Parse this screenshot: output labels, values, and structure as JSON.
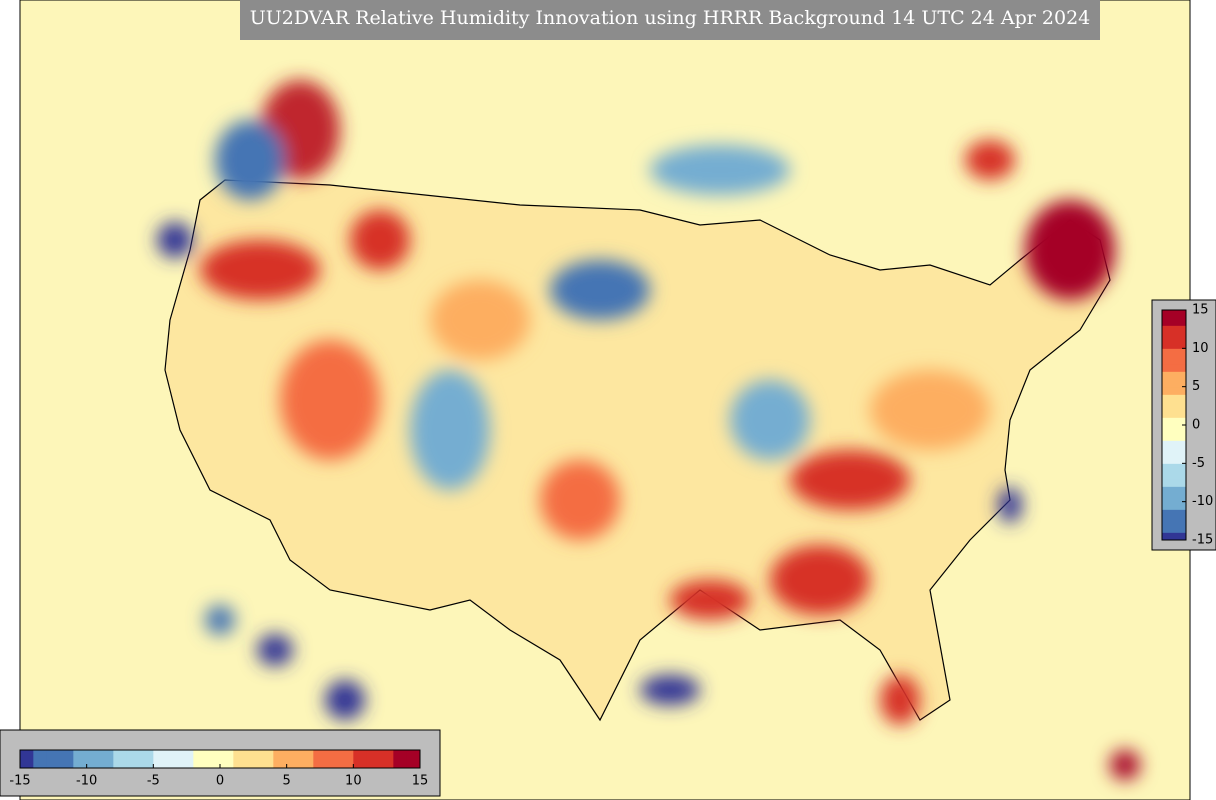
{
  "title": "UU2DVAR Relative Humidity Innovation using HRRR Background 14 UTC 24 Apr 2024",
  "colormap": [
    "#313695",
    "#4575b4",
    "#74add1",
    "#abd9e9",
    "#e0f3f8",
    "#ffffbf",
    "#fee090",
    "#fdae61",
    "#f46d43",
    "#d73027",
    "#a50026"
  ],
  "colorbars": [
    {
      "orientation": "horizontal",
      "lim": [
        -15,
        15
      ],
      "ticks": [
        -15,
        -10,
        -5,
        0,
        5,
        10,
        15
      ]
    },
    {
      "orientation": "vertical",
      "lim": [
        -15,
        15
      ],
      "ticks": [
        15,
        10,
        5,
        0,
        -5,
        -10,
        -15
      ]
    }
  ]
}
